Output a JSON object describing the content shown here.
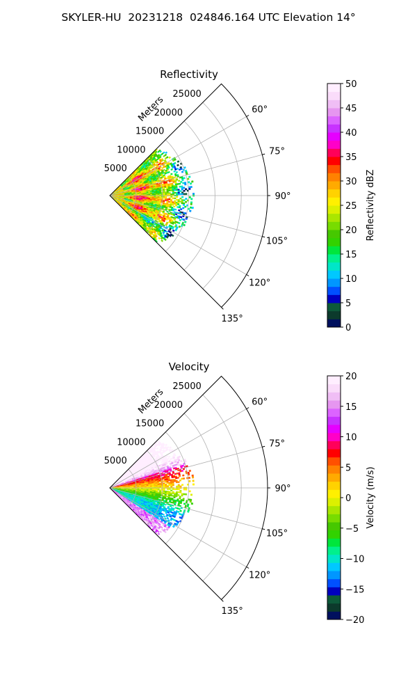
{
  "suptitle": "SKYLER-HU  20231218  024846.164 UTC Elevation 14°",
  "chart_data": [
    {
      "type": "polar sector plot (PPI)",
      "title": "Reflectivity",
      "range_label": "Meters",
      "range_ticks": [
        5000,
        10000,
        15000,
        20000,
        25000
      ],
      "azimuth_ticks": [
        "60°",
        "75°",
        "90°",
        "105°",
        "120°",
        "135°"
      ],
      "azimuth_range_deg": [
        45,
        135
      ],
      "data_extent_m": 16000,
      "grid": true,
      "colorbar": {
        "label": "Reflectivity dBZ",
        "min": 0,
        "max": 50,
        "ticks": [
          0,
          5,
          10,
          15,
          20,
          25,
          30,
          35,
          40,
          45,
          50
        ],
        "colors": [
          "#00105e",
          "#0c3a2c",
          "#0d5a3a",
          "#0000c0",
          "#0050ff",
          "#0096ff",
          "#00c8ff",
          "#00e6c8",
          "#00f08c",
          "#00e63c",
          "#32d200",
          "#46c800",
          "#78dc00",
          "#aae600",
          "#dcf000",
          "#fff000",
          "#ffd200",
          "#ffaa00",
          "#ff8200",
          "#ff5000",
          "#ff0000",
          "#ff005a",
          "#ff00c8",
          "#e600ff",
          "#c832ff",
          "#dc64ff",
          "#e696f0",
          "#f0bef5",
          "#fadcfa",
          "#ffeeff"
        ]
      }
    },
    {
      "type": "polar sector plot (PPI)",
      "title": "Velocity",
      "range_label": "Meters",
      "range_ticks": [
        5000,
        10000,
        15000,
        20000,
        25000
      ],
      "azimuth_ticks": [
        "60°",
        "75°",
        "90°",
        "105°",
        "120°",
        "135°"
      ],
      "azimuth_range_deg": [
        45,
        135
      ],
      "data_extent_m": 16000,
      "grid": true,
      "colorbar": {
        "label": "Velocity (m/s)",
        "min": -20,
        "max": 20,
        "ticks": [
          -20,
          -15,
          -10,
          -5,
          0,
          5,
          10,
          15,
          20
        ],
        "colors": [
          "#00105e",
          "#0c3a2c",
          "#0d5a3a",
          "#0000c0",
          "#0050ff",
          "#0096ff",
          "#00c8ff",
          "#00e6c8",
          "#00f08c",
          "#00e63c",
          "#32d200",
          "#46c800",
          "#78dc00",
          "#aae600",
          "#dcf000",
          "#fff000",
          "#ffd200",
          "#ffaa00",
          "#ff8200",
          "#ff5000",
          "#ff0000",
          "#ff005a",
          "#ff00c8",
          "#e600ff",
          "#c832ff",
          "#dc64ff",
          "#e696f0",
          "#f0bef5",
          "#fadcfa",
          "#ffeeff"
        ]
      }
    }
  ]
}
